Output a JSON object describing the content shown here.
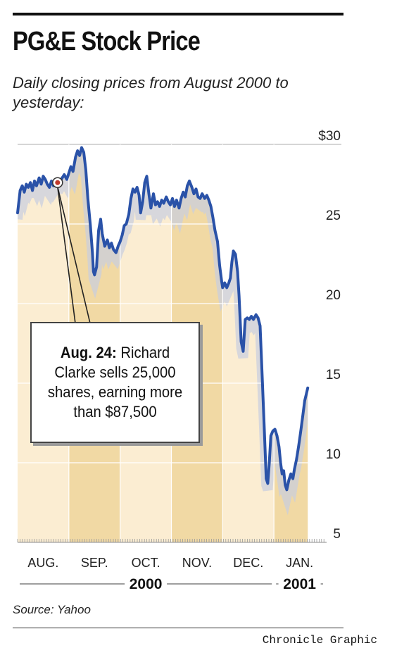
{
  "title": "PG&E Stock Price",
  "subtitle": "Daily closing prices from August 2000 to yesterday:",
  "source": "Source: Yahoo",
  "credit": "Chronicle Graphic",
  "callout": {
    "date": "Aug. 24:",
    "text": "Richard Clarke sells 25,000 shares, earning more than $87,500"
  },
  "colors": {
    "line": "#2a52a8",
    "band_light": "#fbedd2",
    "band_dark": "#f1d9a4",
    "grid": "#ffffff",
    "marker": "#c0392b"
  },
  "chart_data": {
    "type": "line",
    "title": "PG&E Stock Price",
    "ylim": [
      5,
      30
    ],
    "yticks": [
      {
        "value": 30,
        "label": "$30"
      },
      {
        "value": 25,
        "label": "25"
      },
      {
        "value": 20,
        "label": "20"
      },
      {
        "value": 15,
        "label": "15"
      },
      {
        "value": 10,
        "label": "10"
      },
      {
        "value": 5,
        "label": "5"
      }
    ],
    "months": [
      "AUG.",
      "SEP.",
      "OCT.",
      "NOV.",
      "DEC.",
      "JAN."
    ],
    "years": [
      {
        "label": "2000",
        "months": [
          "AUG.",
          "SEP.",
          "OCT.",
          "NOV.",
          "DEC."
        ]
      },
      {
        "label": "2001",
        "months": [
          "JAN."
        ]
      }
    ],
    "grid": true,
    "highlight": {
      "month": 0,
      "position": 0.78,
      "value": 27.6,
      "label": "Aug. 24"
    },
    "series": [
      {
        "points": [
          [
            0.0,
            25.7
          ],
          [
            0.05,
            27.1
          ],
          [
            0.09,
            27.4
          ],
          [
            0.13,
            27.0
          ],
          [
            0.17,
            27.5
          ],
          [
            0.21,
            27.3
          ],
          [
            0.25,
            27.6
          ],
          [
            0.29,
            27.1
          ],
          [
            0.33,
            27.7
          ],
          [
            0.37,
            27.4
          ],
          [
            0.42,
            27.9
          ],
          [
            0.46,
            27.5
          ],
          [
            0.5,
            28.0
          ],
          [
            0.54,
            27.8
          ],
          [
            0.58,
            27.5
          ],
          [
            0.62,
            27.3
          ],
          [
            0.66,
            27.7
          ],
          [
            0.7,
            27.4
          ],
          [
            0.74,
            27.6
          ],
          [
            0.78,
            27.6
          ],
          [
            0.82,
            27.6
          ],
          [
            0.87,
            27.9
          ],
          [
            0.91,
            28.1
          ],
          [
            0.96,
            27.8
          ],
          [
            1.0,
            28.2
          ],
          [
            1.04,
            28.6
          ],
          [
            1.08,
            28.3
          ],
          [
            1.13,
            29.2
          ],
          [
            1.17,
            29.6
          ],
          [
            1.21,
            29.3
          ],
          [
            1.25,
            29.8
          ],
          [
            1.29,
            29.5
          ],
          [
            1.33,
            28.4
          ],
          [
            1.37,
            26.6
          ],
          [
            1.42,
            24.9
          ],
          [
            1.46,
            23.2
          ],
          [
            1.48,
            22.0
          ],
          [
            1.5,
            21.8
          ],
          [
            1.54,
            22.3
          ],
          [
            1.58,
            24.6
          ],
          [
            1.62,
            25.3
          ],
          [
            1.65,
            24.4
          ],
          [
            1.7,
            23.6
          ],
          [
            1.75,
            24.0
          ],
          [
            1.79,
            23.5
          ],
          [
            1.83,
            23.8
          ],
          [
            1.87,
            23.4
          ],
          [
            1.92,
            23.2
          ],
          [
            1.96,
            23.6
          ],
          [
            2.0,
            23.9
          ],
          [
            2.04,
            24.3
          ],
          [
            2.08,
            24.9
          ],
          [
            2.12,
            25.0
          ],
          [
            2.17,
            25.6
          ],
          [
            2.21,
            26.6
          ],
          [
            2.25,
            27.2
          ],
          [
            2.29,
            27.0
          ],
          [
            2.33,
            27.3
          ],
          [
            2.37,
            26.8
          ],
          [
            2.4,
            25.7
          ],
          [
            2.44,
            26.4
          ],
          [
            2.48,
            27.6
          ],
          [
            2.52,
            28.0
          ],
          [
            2.56,
            26.9
          ],
          [
            2.6,
            26.0
          ],
          [
            2.65,
            26.9
          ],
          [
            2.69,
            26.2
          ],
          [
            2.73,
            26.4
          ],
          [
            2.77,
            26.1
          ],
          [
            2.81,
            26.5
          ],
          [
            2.85,
            26.3
          ],
          [
            2.9,
            26.7
          ],
          [
            2.94,
            26.4
          ],
          [
            2.98,
            26.2
          ],
          [
            3.02,
            26.6
          ],
          [
            3.06,
            26.1
          ],
          [
            3.1,
            26.5
          ],
          [
            3.15,
            26.0
          ],
          [
            3.19,
            26.6
          ],
          [
            3.23,
            27.0
          ],
          [
            3.27,
            26.7
          ],
          [
            3.31,
            27.4
          ],
          [
            3.35,
            27.7
          ],
          [
            3.4,
            27.3
          ],
          [
            3.44,
            26.9
          ],
          [
            3.48,
            27.2
          ],
          [
            3.52,
            26.7
          ],
          [
            3.56,
            26.6
          ],
          [
            3.6,
            26.9
          ],
          [
            3.65,
            26.6
          ],
          [
            3.69,
            26.8
          ],
          [
            3.73,
            26.5
          ],
          [
            3.77,
            26.1
          ],
          [
            3.81,
            25.4
          ],
          [
            3.85,
            24.6
          ],
          [
            3.9,
            23.9
          ],
          [
            3.94,
            22.4
          ],
          [
            3.98,
            21.4
          ],
          [
            4.0,
            21.0
          ],
          [
            4.04,
            21.3
          ],
          [
            4.08,
            21.0
          ],
          [
            4.12,
            21.3
          ],
          [
            4.15,
            21.6
          ],
          [
            4.18,
            22.6
          ],
          [
            4.21,
            23.3
          ],
          [
            4.25,
            23.1
          ],
          [
            4.29,
            22.0
          ],
          [
            4.32,
            20.5
          ],
          [
            4.36,
            17.6
          ],
          [
            4.4,
            17.0
          ],
          [
            4.44,
            19.0
          ],
          [
            4.48,
            19.1
          ],
          [
            4.52,
            19.0
          ],
          [
            4.56,
            19.2
          ],
          [
            4.6,
            19.0
          ],
          [
            4.65,
            19.3
          ],
          [
            4.69,
            19.1
          ],
          [
            4.73,
            18.6
          ],
          [
            4.77,
            15.5
          ],
          [
            4.81,
            12.3
          ],
          [
            4.85,
            9.0
          ],
          [
            4.88,
            8.7
          ],
          [
            4.91,
            10.0
          ],
          [
            4.94,
            11.7
          ],
          [
            4.98,
            12.0
          ],
          [
            5.02,
            12.1
          ],
          [
            5.06,
            11.7
          ],
          [
            5.1,
            11.0
          ],
          [
            5.13,
            10.0
          ],
          [
            5.16,
            9.3
          ],
          [
            5.19,
            9.5
          ],
          [
            5.22,
            8.6
          ],
          [
            5.25,
            8.3
          ],
          [
            5.29,
            8.9
          ],
          [
            5.33,
            9.3
          ],
          [
            5.37,
            9.0
          ],
          [
            5.4,
            9.6
          ],
          [
            5.44,
            10.2
          ],
          [
            5.48,
            11.0
          ],
          [
            5.52,
            11.9
          ],
          [
            5.56,
            12.9
          ],
          [
            5.6,
            13.9
          ],
          [
            5.63,
            14.3
          ],
          [
            5.66,
            14.7
          ]
        ]
      }
    ]
  }
}
